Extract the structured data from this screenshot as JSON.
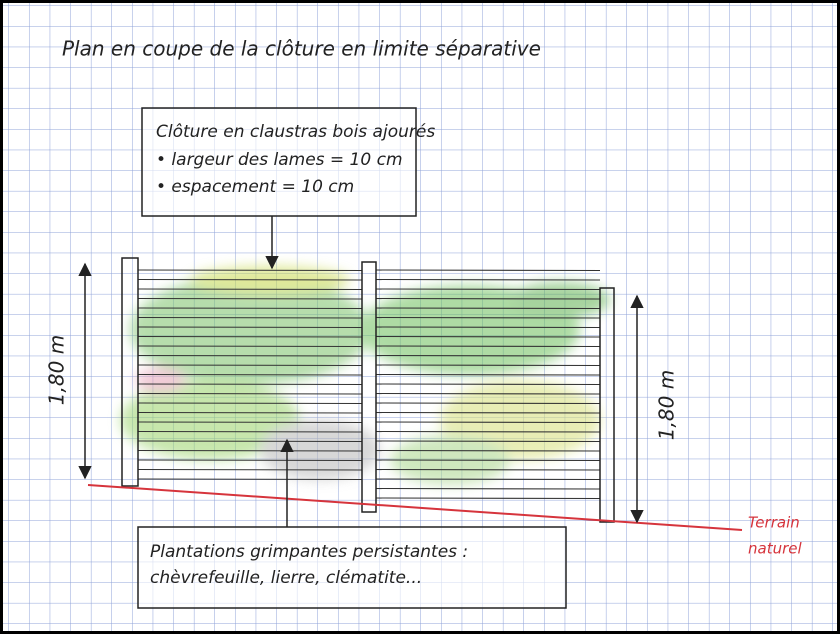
{
  "title": "Plan en coupe de la clôture en limite séparative",
  "fence_note": {
    "lines": [
      "Clôture en claustras bois ajourés",
      "• largeur des lames = 10 cm",
      "• espacement = 10 cm"
    ]
  },
  "height_left": "1,80 m",
  "height_right": "1,80 m",
  "plant_note": {
    "lines": [
      "Plantations grimpantes persistantes :",
      "chèvrefeuille, lierre, clématite..."
    ]
  },
  "ground_label": {
    "lines": [
      "Terrain",
      "naturel"
    ]
  }
}
